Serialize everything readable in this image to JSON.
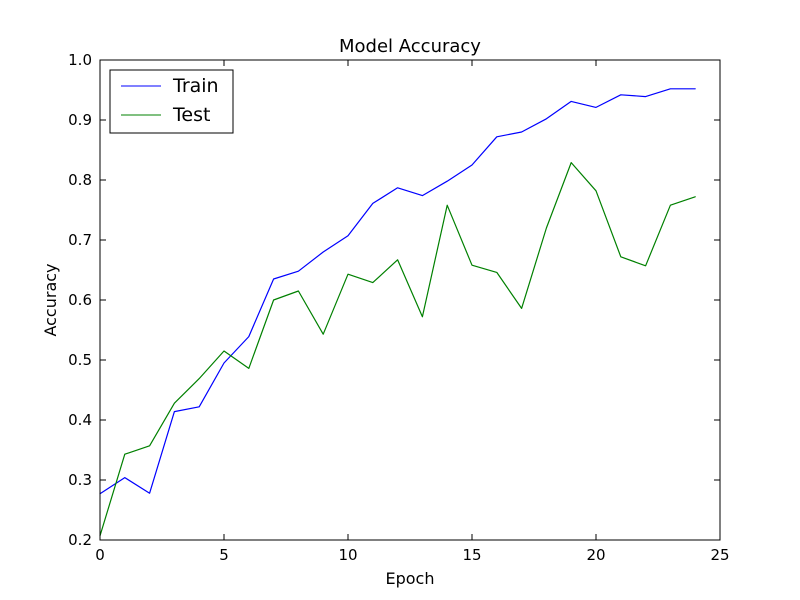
{
  "chart_data": {
    "type": "line",
    "title": "Model Accuracy",
    "xlabel": "Epoch",
    "ylabel": "Accuracy",
    "xlim": [
      0,
      25
    ],
    "ylim": [
      0.2,
      1.0
    ],
    "grid": false,
    "legend_position": "top-left",
    "x_ticks": [
      0,
      5,
      10,
      15,
      20,
      25
    ],
    "y_ticks": [
      0.2,
      0.3,
      0.4,
      0.5,
      0.6,
      0.7,
      0.8,
      0.9,
      1.0
    ],
    "x_tick_labels": [
      "0",
      "5",
      "10",
      "15",
      "20",
      "25"
    ],
    "y_tick_labels": [
      "0.2",
      "0.3",
      "0.4",
      "0.5",
      "0.6",
      "0.7",
      "0.8",
      "0.9",
      "1.0"
    ],
    "x": [
      0,
      1,
      2,
      3,
      4,
      5,
      6,
      7,
      8,
      9,
      10,
      11,
      12,
      13,
      14,
      15,
      16,
      17,
      18,
      19,
      20,
      21,
      22,
      23,
      24
    ],
    "series": [
      {
        "name": "Train",
        "color": "#0000ff",
        "values": [
          0.277,
          0.304,
          0.278,
          0.414,
          0.422,
          0.495,
          0.539,
          0.635,
          0.648,
          0.68,
          0.707,
          0.761,
          0.787,
          0.774,
          0.798,
          0.825,
          0.872,
          0.88,
          0.902,
          0.931,
          0.921,
          0.942,
          0.939,
          0.952,
          0.952
        ]
      },
      {
        "name": "Test",
        "color": "#008000",
        "values": [
          0.207,
          0.343,
          0.357,
          0.428,
          0.469,
          0.515,
          0.486,
          0.6,
          0.615,
          0.543,
          0.643,
          0.629,
          0.667,
          0.572,
          0.758,
          0.658,
          0.646,
          0.586,
          0.72,
          0.829,
          0.782,
          0.672,
          0.657,
          0.758,
          0.772
        ]
      }
    ]
  }
}
